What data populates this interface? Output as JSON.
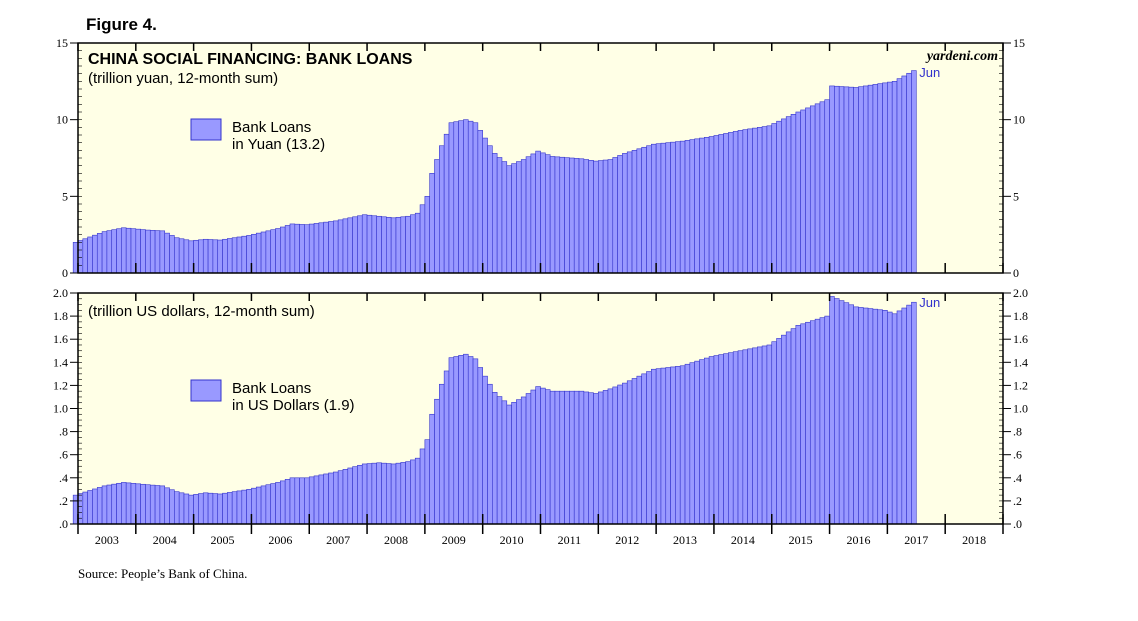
{
  "figure_label": "Figure 4.",
  "source": "Source: People’s Bank of China.",
  "watermark": "yardeni.com",
  "colors": {
    "plot_bg": "#ffffe6",
    "bar_fill": "#9999ff",
    "bar_stroke": "#3333cc",
    "frame": "#000000",
    "accent_text": "#3333cc"
  },
  "chart_data": [
    {
      "type": "bar",
      "title": "CHINA SOCIAL FINANCING: BANK LOANS",
      "subtitle": "(trillion yuan, 12-month sum)",
      "series": [
        {
          "name": "Bank Loans in Yuan (13.2)",
          "legend_lines": [
            "Bank Loans",
            "in Yuan (13.2)"
          ],
          "start": "2002-12",
          "end": "2017-06",
          "anchors": [
            [
              "2002-12",
              2.0
            ],
            [
              "2003-06",
              2.7
            ],
            [
              "2003-10",
              2.95
            ],
            [
              "2004-03",
              2.8
            ],
            [
              "2004-06",
              2.75
            ],
            [
              "2004-09",
              2.3
            ],
            [
              "2004-12",
              2.1
            ],
            [
              "2005-03",
              2.2
            ],
            [
              "2005-06",
              2.15
            ],
            [
              "2005-09",
              2.3
            ],
            [
              "2005-12",
              2.45
            ],
            [
              "2006-06",
              2.9
            ],
            [
              "2006-09",
              3.2
            ],
            [
              "2006-12",
              3.15
            ],
            [
              "2007-06",
              3.4
            ],
            [
              "2007-12",
              3.8
            ],
            [
              "2008-03",
              3.7
            ],
            [
              "2008-06",
              3.6
            ],
            [
              "2008-09",
              3.7
            ],
            [
              "2008-11",
              3.9
            ],
            [
              "2009-01",
              5.0
            ],
            [
              "2009-02",
              6.5
            ],
            [
              "2009-04",
              8.3
            ],
            [
              "2009-06",
              9.8
            ],
            [
              "2009-09",
              10.0
            ],
            [
              "2009-11",
              9.8
            ],
            [
              "2010-01",
              8.8
            ],
            [
              "2010-03",
              7.8
            ],
            [
              "2010-06",
              7.0
            ],
            [
              "2010-09",
              7.4
            ],
            [
              "2010-12",
              7.95
            ],
            [
              "2011-03",
              7.6
            ],
            [
              "2011-09",
              7.45
            ],
            [
              "2011-12",
              7.3
            ],
            [
              "2012-03",
              7.4
            ],
            [
              "2012-06",
              7.8
            ],
            [
              "2012-12",
              8.4
            ],
            [
              "2013-06",
              8.6
            ],
            [
              "2013-12",
              8.9
            ],
            [
              "2014-06",
              9.3
            ],
            [
              "2014-12",
              9.6
            ],
            [
              "2015-06",
              10.5
            ],
            [
              "2015-12",
              11.3
            ],
            [
              "2016-01",
              12.2
            ],
            [
              "2016-06",
              12.1
            ],
            [
              "2016-12",
              12.4
            ],
            [
              "2017-02",
              12.5
            ],
            [
              "2017-06",
              13.2
            ]
          ]
        }
      ],
      "ylim": [
        0,
        15
      ],
      "yticks": [
        "0",
        "5",
        "10",
        "15"
      ],
      "ytick_values": [
        0,
        5,
        10,
        15
      ],
      "end_label": "Jun",
      "xlabel": "",
      "ylabel": "",
      "legend_position": "upper-left"
    },
    {
      "type": "bar",
      "title": "",
      "subtitle": "(trillion US dollars, 12-month sum)",
      "series": [
        {
          "name": "Bank Loans in US Dollars (1.9)",
          "legend_lines": [
            "Bank Loans",
            "in US Dollars (1.9)"
          ],
          "start": "2002-12",
          "end": "2017-06",
          "anchors": [
            [
              "2002-12",
              0.25
            ],
            [
              "2003-06",
              0.33
            ],
            [
              "2003-10",
              0.36
            ],
            [
              "2004-03",
              0.34
            ],
            [
              "2004-06",
              0.33
            ],
            [
              "2004-09",
              0.28
            ],
            [
              "2004-12",
              0.25
            ],
            [
              "2005-03",
              0.27
            ],
            [
              "2005-06",
              0.26
            ],
            [
              "2005-09",
              0.28
            ],
            [
              "2005-12",
              0.3
            ],
            [
              "2006-06",
              0.36
            ],
            [
              "2006-09",
              0.4
            ],
            [
              "2006-12",
              0.4
            ],
            [
              "2007-06",
              0.45
            ],
            [
              "2007-12",
              0.52
            ],
            [
              "2008-03",
              0.53
            ],
            [
              "2008-06",
              0.52
            ],
            [
              "2008-09",
              0.54
            ],
            [
              "2008-11",
              0.57
            ],
            [
              "2009-01",
              0.73
            ],
            [
              "2009-02",
              0.95
            ],
            [
              "2009-04",
              1.21
            ],
            [
              "2009-06",
              1.44
            ],
            [
              "2009-09",
              1.47
            ],
            [
              "2009-11",
              1.43
            ],
            [
              "2010-01",
              1.28
            ],
            [
              "2010-03",
              1.14
            ],
            [
              "2010-06",
              1.03
            ],
            [
              "2010-09",
              1.1
            ],
            [
              "2010-12",
              1.19
            ],
            [
              "2011-03",
              1.15
            ],
            [
              "2011-09",
              1.15
            ],
            [
              "2011-12",
              1.13
            ],
            [
              "2012-03",
              1.17
            ],
            [
              "2012-06",
              1.22
            ],
            [
              "2012-12",
              1.34
            ],
            [
              "2013-06",
              1.37
            ],
            [
              "2013-12",
              1.45
            ],
            [
              "2014-06",
              1.5
            ],
            [
              "2014-12",
              1.55
            ],
            [
              "2015-06",
              1.72
            ],
            [
              "2015-12",
              1.8
            ],
            [
              "2016-01",
              1.97
            ],
            [
              "2016-06",
              1.88
            ],
            [
              "2016-12",
              1.85
            ],
            [
              "2017-02",
              1.82
            ],
            [
              "2017-06",
              1.92
            ]
          ]
        }
      ],
      "ylim": [
        0,
        2.0
      ],
      "yticks": [
        ".0",
        ".2",
        ".4",
        ".6",
        ".8",
        "1.0",
        "1.2",
        "1.4",
        "1.6",
        "1.8",
        "2.0"
      ],
      "ytick_values": [
        0,
        0.2,
        0.4,
        0.6,
        0.8,
        1.0,
        1.2,
        1.4,
        1.6,
        1.8,
        2.0
      ],
      "end_label": "Jun",
      "xlabel": "",
      "ylabel": "",
      "legend_position": "left-middle"
    }
  ],
  "x_axis": {
    "start": "2003-01",
    "end": "2019-01",
    "labels": [
      "2003",
      "2004",
      "2005",
      "2006",
      "2007",
      "2008",
      "2009",
      "2010",
      "2011",
      "2012",
      "2013",
      "2014",
      "2015",
      "2016",
      "2017",
      "2018"
    ]
  }
}
